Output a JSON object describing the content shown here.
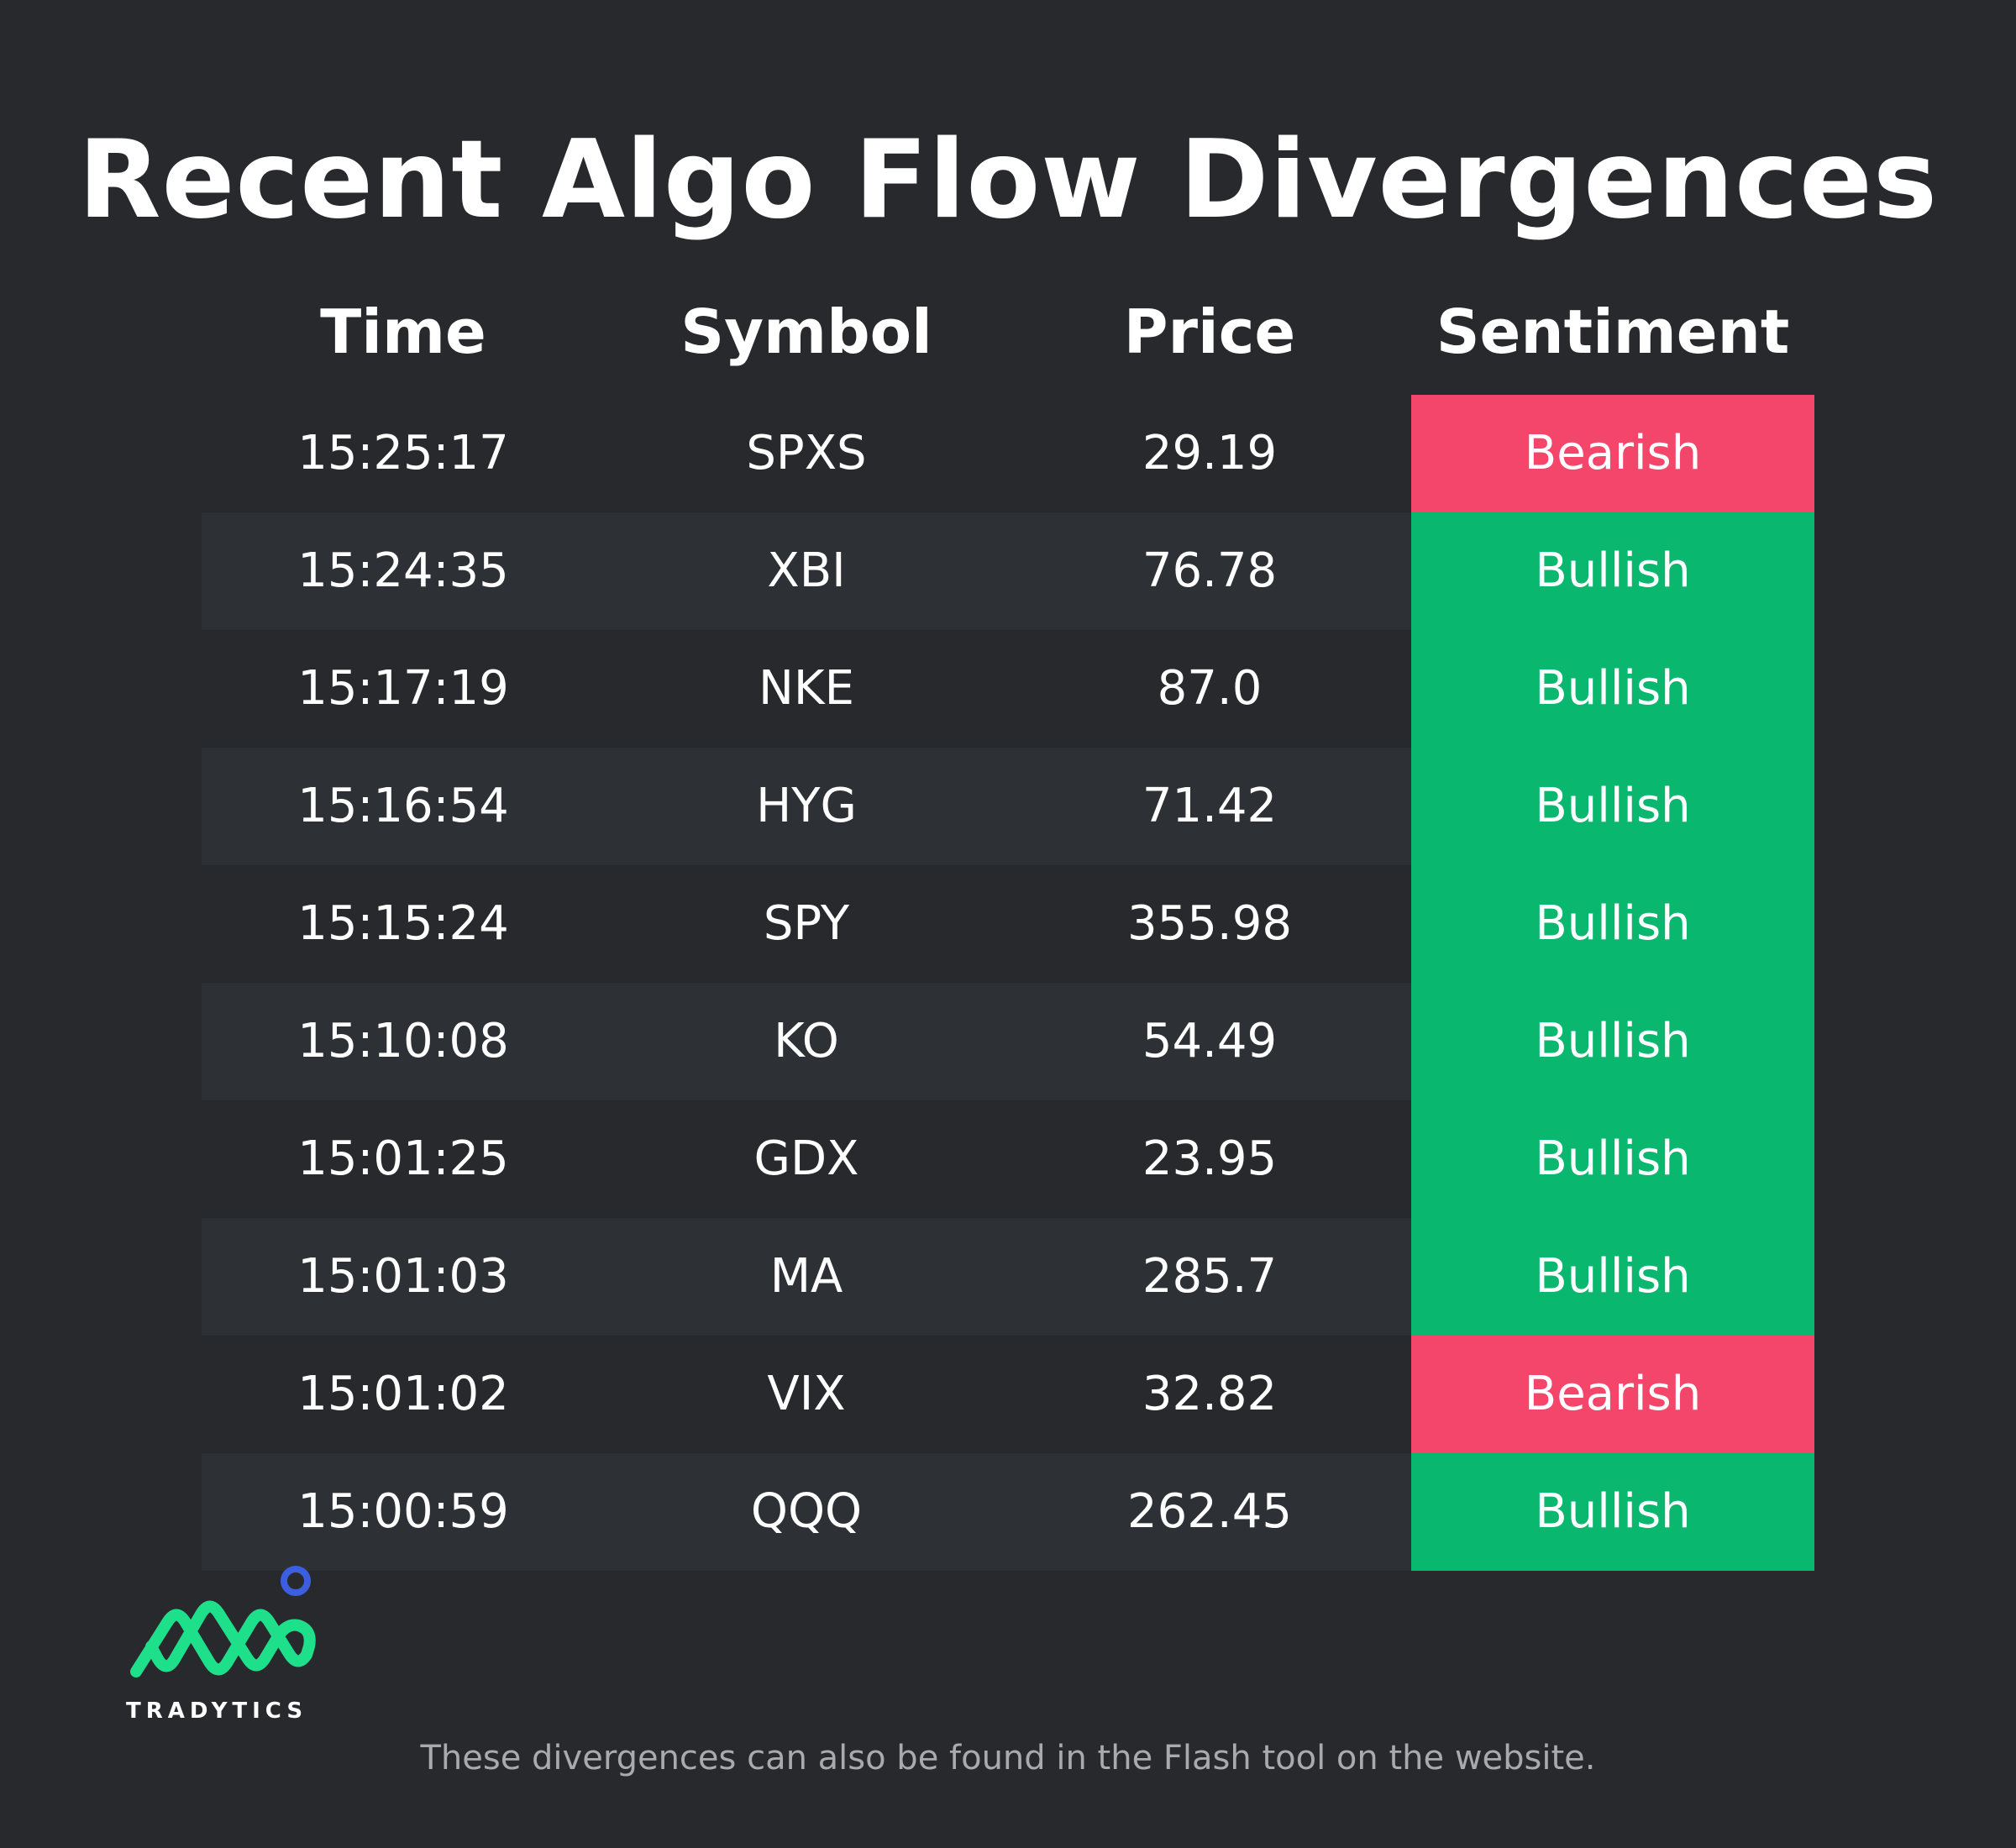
{
  "title": "Recent Algo Flow Divergences",
  "columns": {
    "time": "Time",
    "symbol": "Symbol",
    "price": "Price",
    "sentiment": "Sentiment"
  },
  "colors": {
    "bearish": "#f3466a",
    "bullish": "#0ab76e",
    "background": "#28292c",
    "row_alt": "#2d3034",
    "logo_green": "#1ee08a",
    "logo_blue": "#3b5fe0"
  },
  "rows": [
    {
      "time": "15:25:17",
      "symbol": "SPXS",
      "price": "29.19",
      "sentiment": "Bearish"
    },
    {
      "time": "15:24:35",
      "symbol": "XBI",
      "price": "76.78",
      "sentiment": "Bullish"
    },
    {
      "time": "15:17:19",
      "symbol": "NKE",
      "price": "87.0",
      "sentiment": "Bullish"
    },
    {
      "time": "15:16:54",
      "symbol": "HYG",
      "price": "71.42",
      "sentiment": "Bullish"
    },
    {
      "time": "15:15:24",
      "symbol": "SPY",
      "price": "355.98",
      "sentiment": "Bullish"
    },
    {
      "time": "15:10:08",
      "symbol": "KO",
      "price": "54.49",
      "sentiment": "Bullish"
    },
    {
      "time": "15:01:25",
      "symbol": "GDX",
      "price": "23.95",
      "sentiment": "Bullish"
    },
    {
      "time": "15:01:03",
      "symbol": "MA",
      "price": "285.7",
      "sentiment": "Bullish"
    },
    {
      "time": "15:01:02",
      "symbol": "VIX",
      "price": "32.82",
      "sentiment": "Bearish"
    },
    {
      "time": "15:00:59",
      "symbol": "QQQ",
      "price": "262.45",
      "sentiment": "Bullish"
    }
  ],
  "logo": {
    "name": "TRADYTICS"
  },
  "footer": "These divergences can also be found in the Flash tool on the website."
}
